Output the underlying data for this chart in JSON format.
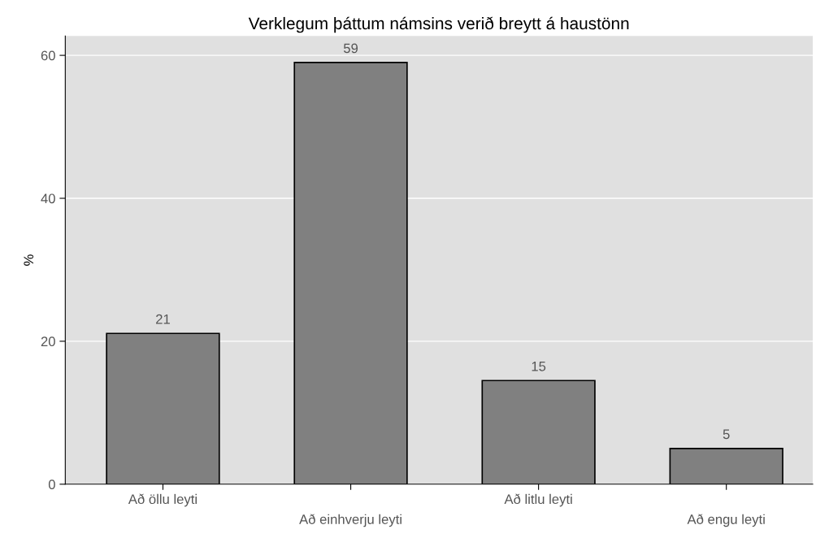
{
  "chart_data": {
    "type": "bar",
    "title": "Verklegum þáttum námsins verið breytt á haustönn",
    "ylabel": "%",
    "categories": [
      "Að öllu leyti",
      "Að einhverju leyti",
      "Að litlu leyti",
      "Að engu leyti"
    ],
    "values": [
      21.1,
      59,
      14.5,
      5
    ],
    "value_labels": [
      "21",
      "59",
      "15",
      "5"
    ],
    "color": "#808080",
    "ylim": [
      0,
      62.7
    ],
    "yticks": [
      0,
      20,
      40,
      60
    ],
    "grid": "y"
  }
}
